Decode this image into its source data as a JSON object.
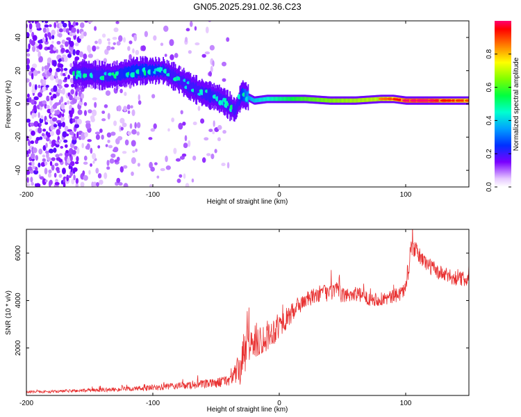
{
  "title": "GN05.2025.291.02.36.C23",
  "chart_data": [
    {
      "type": "heatmap",
      "name": "spectrogram",
      "xlabel": "Height of straight line (km)",
      "ylabel": "Frequency (Hz)",
      "xlim": [
        -200,
        150
      ],
      "ylim": [
        -50,
        50
      ],
      "x_ticks": [
        "-200",
        "-100",
        "0",
        "100"
      ],
      "x_tick_values": [
        -200,
        -100,
        0,
        100
      ],
      "y_ticks": [
        "40",
        "20",
        "0",
        "-20",
        "-40"
      ],
      "y_tick_values": [
        40,
        20,
        0,
        -20,
        -40
      ],
      "colorbar": {
        "label": "Normalized spectral amplitude",
        "range": [
          0,
          1
        ],
        "ticks": [
          "0.0",
          "0.2",
          "0.4",
          "0.6",
          "0.8"
        ],
        "tick_values": [
          0,
          0.2,
          0.4,
          0.6,
          0.8
        ]
      },
      "ridge": {
        "x": [
          -162,
          -150,
          -140,
          -130,
          -120,
          -110,
          -100,
          -92,
          -85,
          -78,
          -70,
          -62,
          -55,
          -50,
          -45,
          -40,
          -35,
          -30,
          -25,
          -20,
          -10,
          0,
          10,
          20,
          40,
          60,
          80,
          90,
          100,
          110,
          120,
          130,
          150
        ],
        "freq": [
          18,
          18,
          17,
          17,
          19,
          20,
          20,
          20,
          17,
          14,
          10,
          7,
          5,
          4,
          2,
          -1,
          -4,
          6,
          4,
          2,
          3,
          3,
          3,
          3,
          2,
          2,
          3,
          3,
          2,
          2,
          2,
          2,
          2
        ],
        "amplitude": [
          0.2,
          0.25,
          0.3,
          0.32,
          0.35,
          0.35,
          0.35,
          0.33,
          0.3,
          0.3,
          0.28,
          0.3,
          0.32,
          0.3,
          0.3,
          0.3,
          0.25,
          0.35,
          0.45,
          0.5,
          0.55,
          0.6,
          0.65,
          0.7,
          0.75,
          0.78,
          0.8,
          0.85,
          0.95,
          0.95,
          0.95,
          0.9,
          0.85
        ]
      }
    },
    {
      "type": "line",
      "name": "snr",
      "xlabel": "Height of straight line (km)",
      "ylabel": "SNR (10 * v/v)",
      "xlim": [
        -200,
        150
      ],
      "ylim": [
        0,
        7000
      ],
      "x_ticks": [
        "-200",
        "-100",
        "0",
        "100"
      ],
      "x_tick_values": [
        -200,
        -100,
        0,
        100
      ],
      "y_ticks": [
        "6000",
        "4000",
        "2000"
      ],
      "y_tick_values": [
        6000,
        4000,
        2000
      ],
      "series": [
        {
          "name": "SNR",
          "color": "#e83030",
          "x": [
            -200,
            -180,
            -160,
            -140,
            -120,
            -100,
            -90,
            -80,
            -70,
            -60,
            -50,
            -40,
            -35,
            -30,
            -28,
            -25,
            -20,
            -15,
            -10,
            -5,
            0,
            5,
            10,
            15,
            20,
            25,
            30,
            35,
            40,
            45,
            50,
            60,
            70,
            80,
            90,
            95,
            100,
            103,
            105,
            108,
            112,
            118,
            125,
            135,
            145,
            150
          ],
          "base": [
            150,
            160,
            200,
            230,
            270,
            320,
            360,
            400,
            430,
            470,
            520,
            650,
            900,
            1200,
            1700,
            2100,
            2250,
            2300,
            2500,
            2700,
            2950,
            3200,
            3450,
            3750,
            4000,
            4100,
            4250,
            4350,
            4300,
            4450,
            4200,
            4300,
            4100,
            4050,
            4150,
            4300,
            4500,
            5700,
            6300,
            6100,
            5800,
            5500,
            5200,
            5000,
            4900,
            5000
          ],
          "noise": [
            100,
            110,
            140,
            160,
            200,
            260,
            280,
            300,
            320,
            360,
            400,
            480,
            800,
            1800,
            2100,
            1600,
            1400,
            1300,
            1300,
            1200,
            1100,
            950,
            850,
            750,
            700,
            700,
            700,
            700,
            750,
            700,
            650,
            650,
            600,
            600,
            600,
            650,
            700,
            850,
            800,
            750,
            700,
            700,
            650,
            650,
            650,
            650
          ]
        }
      ]
    }
  ]
}
